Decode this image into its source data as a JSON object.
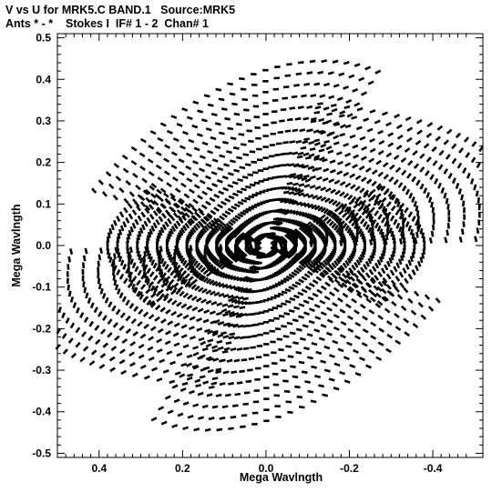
{
  "title_line1": "V vs U for MRK5.C BAND.1   Source:MRK5",
  "title_line2": "Ants * - *    Stokes I  IF# 1 - 2  Chan# 1",
  "chart_data": {
    "type": "scatter",
    "xlabel": "Mega Wavlngth",
    "ylabel": "Mega Wavlngth",
    "xlim": [
      0.5,
      -0.52
    ],
    "ylim": [
      -0.51,
      0.51
    ],
    "x_ticks": [
      0.4,
      0.2,
      0.0,
      -0.2,
      -0.4
    ],
    "x_tick_labels": [
      "0.4",
      "0.2",
      "0.0",
      "-0.2",
      "-0.4"
    ],
    "y_ticks": [
      0.5,
      0.4,
      0.3,
      0.2,
      0.1,
      0.0,
      -0.1,
      -0.2,
      -0.3,
      -0.4,
      -0.5
    ],
    "y_tick_labels": [
      "0.5",
      "0.4",
      "0.3",
      "0.2",
      "0.1",
      "0.0",
      "-0.1",
      "-0.2",
      "-0.3",
      "-0.4",
      "-0.5"
    ],
    "grid": false,
    "marker": "short dash",
    "marker_color": "#000000",
    "baseline_arms": [
      {
        "end_u": 0.1,
        "end_v": 0.49
      },
      {
        "end_u": -0.49,
        "end_v": 0.32
      },
      {
        "end_u": -0.38,
        "end_v": 0.0
      }
    ],
    "samples_per_track": 28,
    "hour_angle_range_deg": [
      -80,
      80
    ],
    "symmetric": true
  }
}
